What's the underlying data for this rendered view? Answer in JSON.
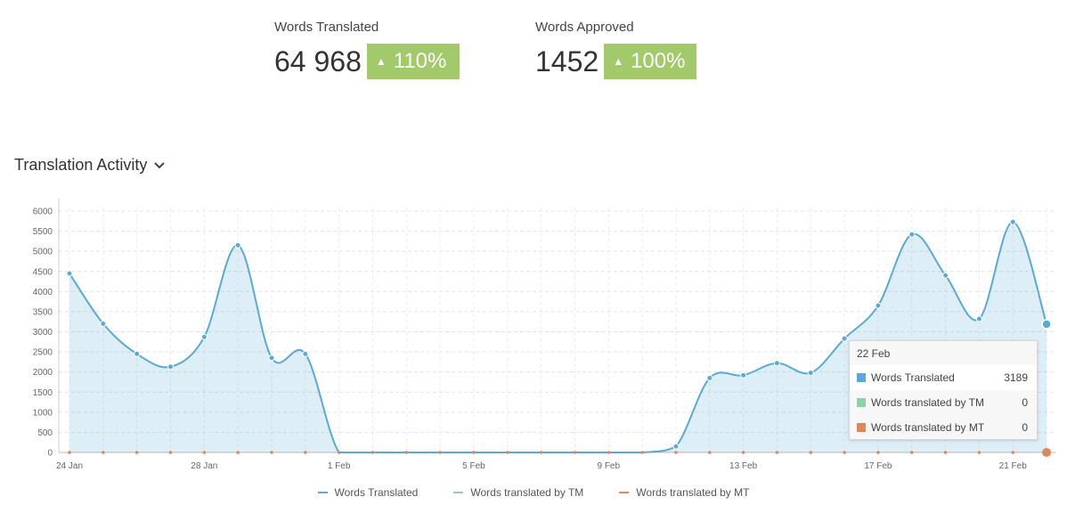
{
  "stats": [
    {
      "label": "Words Translated",
      "value": "64 968",
      "change": "110%"
    },
    {
      "label": "Words Approved",
      "value": "1452",
      "change": "100%"
    }
  ],
  "colors": {
    "accent_badge": "#a2c96a",
    "translated": "#5aaad6",
    "tm": "#8ed2a8",
    "mt": "#e0875a"
  },
  "section": {
    "title": "Translation Activity"
  },
  "tooltip": {
    "date": "22 Feb",
    "rows": [
      {
        "name": "Words Translated",
        "value": "3189"
      },
      {
        "name": "Words translated by TM",
        "value": "0"
      },
      {
        "name": "Words translated by MT",
        "value": "0"
      }
    ]
  },
  "chart_data": {
    "type": "area",
    "x": [
      "24 Jan",
      "25 Jan",
      "26 Jan",
      "27 Jan",
      "28 Jan",
      "29 Jan",
      "30 Jan",
      "31 Jan",
      "1 Feb",
      "2 Feb",
      "3 Feb",
      "4 Feb",
      "5 Feb",
      "6 Feb",
      "7 Feb",
      "8 Feb",
      "9 Feb",
      "10 Feb",
      "11 Feb",
      "12 Feb",
      "13 Feb",
      "14 Feb",
      "15 Feb",
      "16 Feb",
      "17 Feb",
      "18 Feb",
      "19 Feb",
      "20 Feb",
      "21 Feb",
      "22 Feb"
    ],
    "x_tick_labels": [
      "24 Jan",
      "28 Jan",
      "1 Feb",
      "5 Feb",
      "9 Feb",
      "13 Feb",
      "17 Feb",
      "21 Feb"
    ],
    "x_tick_indices": [
      0,
      4,
      8,
      12,
      16,
      20,
      24,
      28
    ],
    "series": [
      {
        "name": "Words Translated",
        "values": [
          4450,
          3200,
          2450,
          2130,
          2870,
          5150,
          2350,
          2450,
          0,
          0,
          0,
          0,
          0,
          0,
          0,
          0,
          0,
          0,
          150,
          1850,
          1920,
          2220,
          1980,
          2830,
          3650,
          5420,
          4400,
          3320,
          5730,
          3189
        ]
      },
      {
        "name": "Words translated by TM",
        "values": [
          0,
          0,
          0,
          0,
          0,
          0,
          0,
          0,
          0,
          0,
          0,
          0,
          0,
          0,
          0,
          0,
          0,
          0,
          0,
          0,
          0,
          0,
          0,
          0,
          0,
          0,
          0,
          0,
          0,
          0
        ]
      },
      {
        "name": "Words translated by MT",
        "values": [
          0,
          0,
          0,
          0,
          0,
          0,
          0,
          0,
          0,
          0,
          0,
          0,
          0,
          0,
          0,
          0,
          0,
          0,
          0,
          0,
          0,
          0,
          0,
          0,
          0,
          0,
          0,
          0,
          0,
          0
        ]
      }
    ],
    "y_ticks": [
      0,
      500,
      1000,
      1500,
      2000,
      2500,
      3000,
      3500,
      4000,
      4500,
      5000,
      5500,
      6000
    ],
    "ylim": [
      0,
      6000
    ],
    "grid": true,
    "legend": "bottom-center"
  }
}
